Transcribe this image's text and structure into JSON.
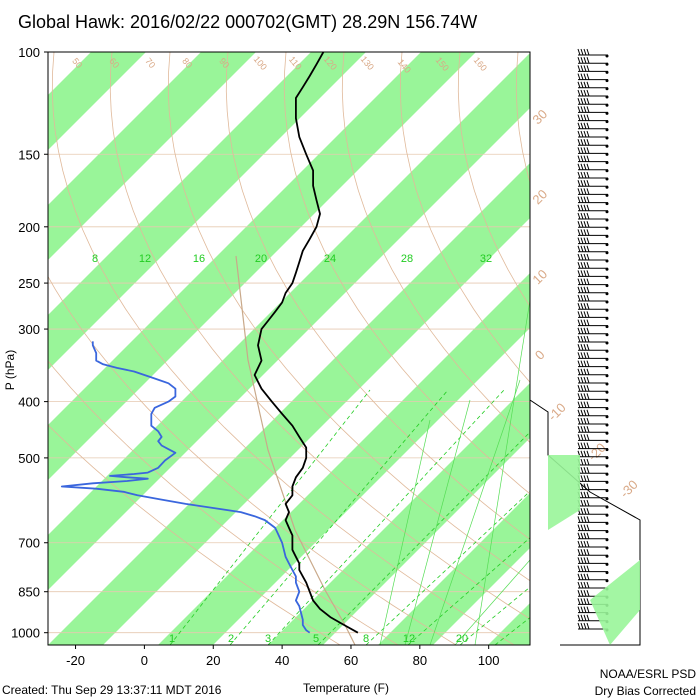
{
  "title": "Global Hawk: 2016/02/22 000702(GMT) 28.29N 156.74W",
  "footer": {
    "created": "Created: Thu Sep 29 13:37:11 MDT 2016",
    "credit_line1": "NOAA/ESRL PSD",
    "credit_line2": "Dry Bias Corrected"
  },
  "colors": {
    "band_fill": "#99f599",
    "temperature_line": "#000000",
    "dewpoint_line": "#3a66dd",
    "dry_adiabat": "#e0b99a",
    "mixing_ratio": "#22cc22",
    "grid": "#999999"
  },
  "chart_data": {
    "type": "line",
    "title": "Global Hawk: 2016/02/22 000702(GMT) 28.29N 156.74W",
    "xlabel": "Temperature (F)",
    "ylabel": "P (hPa)",
    "y_scale": "log",
    "xlim": [
      -28,
      112
    ],
    "ylim": [
      1050,
      100
    ],
    "x_ticks": [
      -20,
      0,
      20,
      40,
      60,
      80,
      100
    ],
    "y_ticks": [
      100,
      150,
      200,
      250,
      300,
      400,
      500,
      700,
      850,
      1000
    ],
    "mixing_ratio_labels": [
      "8",
      "12",
      "16",
      "20",
      "24",
      "28",
      "32"
    ],
    "mixing_ratio_bottom_labels": [
      "1",
      "2",
      "3",
      "5",
      "8",
      "12",
      "20"
    ],
    "dry_adiabat_labels": [
      "50",
      "60",
      "70",
      "80",
      "90",
      "100",
      "110",
      "120",
      "130",
      "140",
      "150",
      "160"
    ],
    "moist_labels": [
      "30",
      "20",
      "10",
      "0",
      "-10",
      "-20",
      "-30"
    ],
    "grid": true,
    "series": [
      {
        "points": [
          [
            62,
            1000
          ],
          [
            58,
            970
          ],
          [
            54,
            940
          ],
          [
            51,
            910
          ],
          [
            49,
            880
          ],
          [
            48,
            850
          ],
          [
            47,
            820
          ],
          [
            46,
            800
          ],
          [
            45,
            780
          ],
          [
            45,
            760
          ],
          [
            44,
            740
          ],
          [
            43,
            720
          ],
          [
            43,
            700
          ],
          [
            43,
            680
          ],
          [
            42,
            660
          ],
          [
            41,
            640
          ],
          [
            42,
            620
          ],
          [
            41,
            600
          ],
          [
            43,
            580
          ],
          [
            43,
            560
          ],
          [
            44,
            540
          ],
          [
            46,
            520
          ],
          [
            47,
            500
          ],
          [
            47,
            480
          ],
          [
            45,
            460
          ],
          [
            43,
            440
          ],
          [
            40,
            420
          ],
          [
            37,
            400
          ],
          [
            34,
            380
          ],
          [
            32,
            360
          ],
          [
            34,
            340
          ],
          [
            33,
            320
          ],
          [
            34,
            300
          ],
          [
            36,
            290
          ],
          [
            38,
            280
          ],
          [
            40,
            270
          ],
          [
            41,
            260
          ],
          [
            43,
            250
          ],
          [
            44,
            240
          ],
          [
            45,
            230
          ],
          [
            46,
            220
          ],
          [
            48,
            210
          ],
          [
            50,
            200
          ],
          [
            51,
            190
          ],
          [
            50,
            180
          ],
          [
            49,
            170
          ],
          [
            49,
            160
          ],
          [
            47,
            150
          ],
          [
            45,
            140
          ],
          [
            44,
            130
          ],
          [
            44,
            120
          ],
          [
            46,
            115
          ],
          [
            48,
            110
          ],
          [
            50,
            105
          ],
          [
            52,
            100
          ]
        ]
      },
      {
        "points": [
          [
            48,
            1000
          ],
          [
            47,
            990
          ],
          [
            46,
            970
          ],
          [
            46,
            950
          ],
          [
            45,
            900
          ],
          [
            44,
            880
          ],
          [
            45,
            850
          ],
          [
            44,
            820
          ],
          [
            44,
            800
          ],
          [
            43,
            780
          ],
          [
            42,
            760
          ],
          [
            41,
            740
          ],
          [
            40,
            700
          ],
          [
            39,
            680
          ],
          [
            38,
            660
          ],
          [
            35,
            640
          ],
          [
            32,
            630
          ],
          [
            28,
            620
          ],
          [
            20,
            610
          ],
          [
            12,
            600
          ],
          [
            5,
            590
          ],
          [
            -2,
            580
          ],
          [
            -6,
            572
          ],
          [
            -14,
            565
          ],
          [
            -24,
            560
          ],
          [
            -15,
            553
          ],
          [
            -5,
            548
          ],
          [
            1,
            543
          ],
          [
            -5,
            540
          ],
          [
            -10,
            537
          ],
          [
            -3,
            533
          ],
          [
            1,
            530
          ],
          [
            4,
            520
          ],
          [
            6,
            505
          ],
          [
            9,
            490
          ],
          [
            7,
            483
          ],
          [
            5,
            476
          ],
          [
            4,
            468
          ],
          [
            5,
            460
          ],
          [
            4,
            450
          ],
          [
            2,
            440
          ],
          [
            2,
            420
          ],
          [
            3,
            410
          ],
          [
            5,
            405
          ],
          [
            7,
            400
          ],
          [
            9,
            392
          ],
          [
            9,
            380
          ],
          [
            7,
            372
          ],
          [
            3,
            365
          ],
          [
            0,
            360
          ],
          [
            -3,
            355
          ],
          [
            -8,
            350
          ],
          [
            -12,
            345
          ],
          [
            -14,
            340
          ],
          [
            -14,
            330
          ],
          [
            -15,
            320
          ],
          [
            -15,
            315
          ]
        ]
      }
    ]
  }
}
